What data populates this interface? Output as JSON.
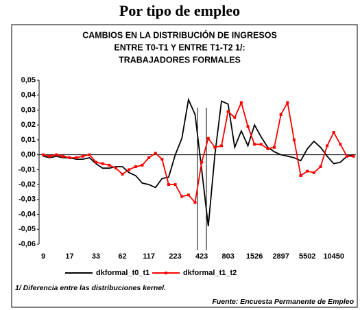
{
  "chart_data": {
    "type": "line",
    "page_title": "Por tipo de empleo",
    "title": [
      "CAMBIOS EN LA DISTRIBUCIÓN DE INGRESOS",
      "ENTRE T0-T1 Y ENTRE T1-T2 1/:",
      "TRABAJADORES FORMALES"
    ],
    "categories": [
      "9",
      null,
      null,
      null,
      "17",
      null,
      null,
      null,
      "33",
      null,
      null,
      null,
      "62",
      null,
      null,
      null,
      "117",
      null,
      null,
      null,
      "223",
      null,
      null,
      null,
      "423",
      null,
      null,
      null,
      "803",
      null,
      null,
      null,
      "1526",
      null,
      null,
      null,
      "2897",
      null,
      null,
      null,
      "5502",
      null,
      null,
      null,
      "10450",
      null,
      null,
      null
    ],
    "series": [
      {
        "name": "dkformal_t0_t1",
        "color": "#000000",
        "marker": false,
        "values": [
          -0.001,
          -0.002,
          -0.001,
          -0.002,
          -0.002,
          -0.003,
          -0.003,
          -0.002,
          -0.006,
          -0.009,
          -0.009,
          -0.008,
          -0.008,
          -0.012,
          -0.014,
          -0.019,
          -0.02,
          -0.022,
          -0.016,
          -0.015,
          0.0,
          0.011,
          0.037,
          0.027,
          -0.01,
          -0.048,
          0.0,
          0.036,
          0.034,
          0.005,
          0.016,
          0.006,
          0.02,
          0.012,
          0.005,
          0.002,
          0.0,
          -0.001,
          -0.002,
          -0.004,
          0.004,
          0.009,
          0.005,
          -0.001,
          -0.006,
          -0.005,
          -0.001,
          0.0
        ]
      },
      {
        "name": "dkformal_t1_t2",
        "color": "#ff0000",
        "marker": true,
        "values": [
          0.0,
          -0.001,
          0.0,
          -0.001,
          -0.002,
          -0.002,
          -0.001,
          0.0,
          -0.005,
          -0.006,
          -0.007,
          -0.009,
          -0.013,
          -0.01,
          -0.008,
          -0.007,
          -0.002,
          0.001,
          -0.003,
          -0.02,
          -0.02,
          -0.028,
          -0.027,
          -0.032,
          -0.005,
          0.011,
          0.005,
          0.006,
          0.029,
          0.025,
          0.035,
          0.019,
          0.007,
          0.007,
          0.004,
          0.005,
          0.027,
          0.035,
          0.01,
          -0.014,
          -0.011,
          -0.012,
          -0.008,
          0.006,
          0.015,
          0.007,
          -0.001,
          -0.001
        ]
      }
    ],
    "ylim": [
      -0.06,
      0.05
    ],
    "yticks": [
      {
        "value": 0.05,
        "label": "0,05"
      },
      {
        "value": 0.04,
        "label": "0,04"
      },
      {
        "value": 0.03,
        "label": "0,03"
      },
      {
        "value": 0.02,
        "label": "0,02"
      },
      {
        "value": 0.01,
        "label": "0,01"
      },
      {
        "value": 0,
        "label": "0,00"
      },
      {
        "value": -0.01,
        "label": "-0,01"
      },
      {
        "value": -0.02,
        "label": "-0,02"
      },
      {
        "value": -0.03,
        "label": "-0,03"
      },
      {
        "value": -0.04,
        "label": "-0,04"
      },
      {
        "value": -0.05,
        "label": "-0,05"
      },
      {
        "value": -0.06,
        "label": "-0,06"
      }
    ],
    "note": "1/ Diferencia entre las distribuciones kernel.",
    "source": "Fuente: Encuesta Permanente de Empleo"
  }
}
